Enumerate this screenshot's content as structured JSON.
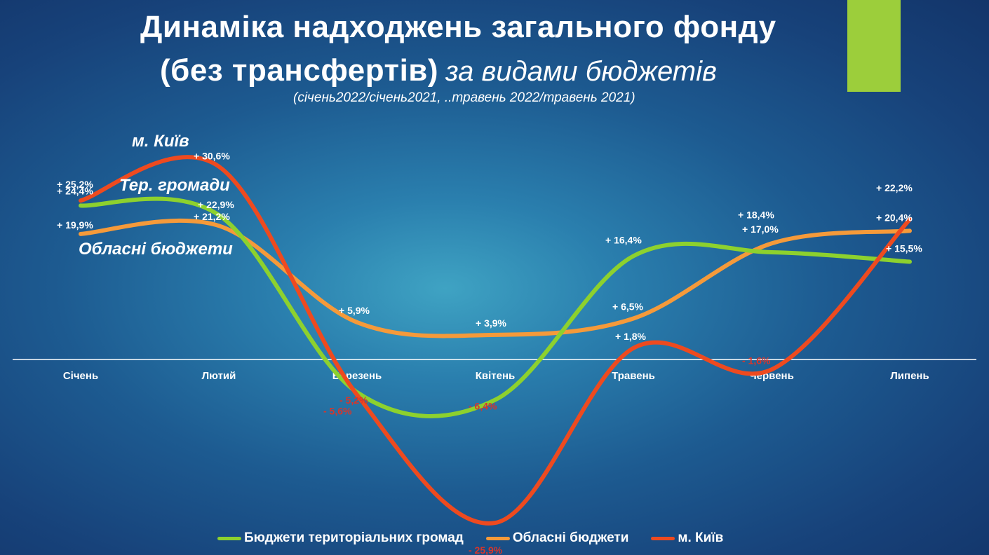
{
  "header": {
    "title_line1": "Динаміка надходжень загального фонду",
    "title_line2_bold": "(без трансфертів)",
    "title_line2_italic": "за видами бюджетів",
    "subtitle": "(січень2022/січень2021, ..травень 2022/травень 2021)"
  },
  "colors": {
    "accent_bar": "#9cce3b",
    "series_green": "#8dd12e",
    "series_orange": "#f59a3a",
    "series_red": "#ee4a1f",
    "negative_label": "#d9352a",
    "text": "#ffffff"
  },
  "chart_data": {
    "type": "line",
    "categories": [
      "Січень",
      "Лютий",
      "Березень",
      "Квітень",
      "Травень",
      "Червень",
      "Липень"
    ],
    "ylabel": "",
    "xlabel": "",
    "smooth": true,
    "grid": false,
    "legend_position": "bottom",
    "series": [
      {
        "name": "Бюджети територіальних громад",
        "color": "#8dd12e",
        "values": [
          24.4,
          22.9,
          -5.2,
          -6.4,
          16.4,
          17.0,
          15.5
        ],
        "labels": [
          "+ 24,4%",
          "+ 22,9%",
          "- 5,2%",
          "- 6,4%",
          "+ 16,4%",
          "+ 17,0%",
          "+ 15,5%"
        ]
      },
      {
        "name": "Обласні бюджети",
        "color": "#f59a3a",
        "values": [
          19.9,
          21.2,
          5.9,
          3.9,
          6.5,
          18.4,
          20.4
        ],
        "labels": [
          "+ 19,9%",
          "+ 21,2%",
          "+ 5,9%",
          "+ 3,9%",
          "+ 6,5%",
          "+ 18,4%",
          "+ 20,4%"
        ]
      },
      {
        "name": "м. Київ",
        "color": "#ee4a1f",
        "values": [
          25.2,
          30.6,
          -5.6,
          -25.9,
          1.8,
          -1.6,
          22.2
        ],
        "labels": [
          "+ 25,2%",
          "+ 30,6%",
          "- 5,6%",
          "- 25,9%",
          "+ 1,8%",
          "- 1,6%",
          "+ 22,2%"
        ]
      }
    ],
    "annotations": [
      {
        "text": "м. Київ",
        "series": "м. Київ"
      },
      {
        "text": "Тер. громади",
        "series": "Бюджети територіальних громад"
      },
      {
        "text": "Обласні бюджети",
        "series": "Обласні бюджети"
      }
    ]
  }
}
